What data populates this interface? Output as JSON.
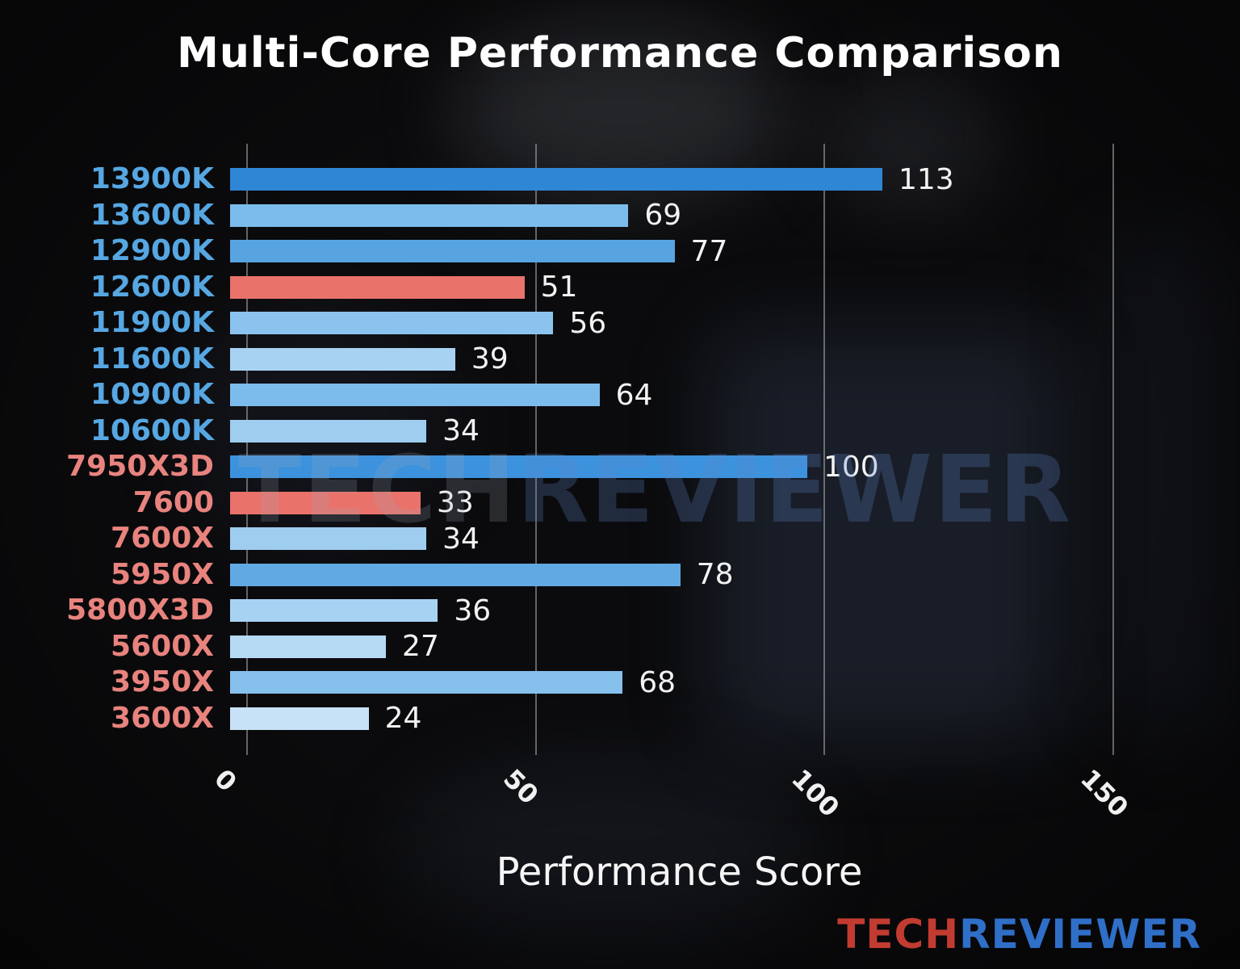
{
  "title": "Multi-Core Performance Comparison",
  "watermark": {
    "part1": "TECH",
    "part2": "REVIEWER"
  },
  "logo": {
    "part1": "TECH",
    "part2": "REVIEWER",
    "part1_color": "#c23b31",
    "part2_color": "#2f6fc8"
  },
  "chart_data": {
    "type": "bar",
    "orientation": "horizontal",
    "title": "Multi-Core Performance Comparison",
    "xlabel": "Performance Score",
    "ylabel": "",
    "xlim": [
      0,
      150
    ],
    "xticks": [
      0,
      50,
      100,
      150
    ],
    "grid": true,
    "legend": false,
    "categories": [
      "13900K",
      "13600K",
      "12900K",
      "12600K",
      "11900K",
      "11600K",
      "10900K",
      "10600K",
      "7950X3D",
      "7600",
      "7600X",
      "5950X",
      "5800X3D",
      "5600X",
      "3950X",
      "3600X"
    ],
    "values": [
      113,
      69,
      77,
      51,
      56,
      39,
      64,
      34,
      100,
      33,
      34,
      78,
      36,
      27,
      68,
      24
    ],
    "bar_colors": [
      "#2f86d5",
      "#7cbcec",
      "#58a4e0",
      "#e9726b",
      "#8cc3ee",
      "#a8d2f2",
      "#7cbcec",
      "#9fcdf0",
      "#3c92dc",
      "#e9726b",
      "#9fcdf0",
      "#61a9e2",
      "#a8d2f2",
      "#b6daf4",
      "#86c0ed",
      "#c7e2f7"
    ],
    "label_colors": [
      "#56a7e2",
      "#56a7e2",
      "#56a7e2",
      "#56a7e2",
      "#56a7e2",
      "#56a7e2",
      "#56a7e2",
      "#56a7e2",
      "#e8837e",
      "#e8837e",
      "#e8837e",
      "#e8837e",
      "#e8837e",
      "#e8837e",
      "#e8837e",
      "#e8837e"
    ],
    "highlight_color": "#e9726b",
    "gridline_color": "rgba(175,175,175,0.55)"
  }
}
